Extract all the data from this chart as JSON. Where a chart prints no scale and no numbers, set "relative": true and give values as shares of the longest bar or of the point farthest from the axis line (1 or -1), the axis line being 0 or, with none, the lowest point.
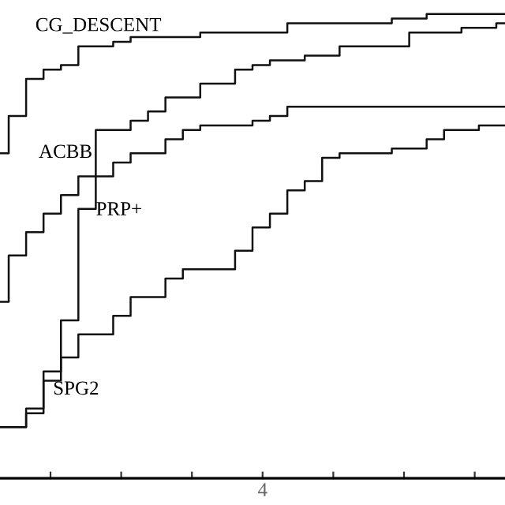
{
  "chart_data": {
    "type": "step",
    "relative": true,
    "categories": [
      null,
      null,
      null,
      null,
      null,
      null,
      null,
      null,
      null,
      null,
      null,
      null,
      null,
      null,
      null,
      null,
      null,
      null,
      null,
      null,
      null,
      null,
      null,
      null,
      null,
      null,
      null,
      null,
      null,
      null
    ],
    "grid": false,
    "legend": false,
    "line_style": "solid",
    "marker": "none",
    "annotations": [
      "4"
    ],
    "series": [
      {
        "name": "CG_DESCENT",
        "color": "#111111",
        "values": [
          0.7,
          0.78,
          0.86,
          0.88,
          0.89,
          0.93,
          0.93,
          0.94,
          0.95,
          0.95,
          0.95,
          0.95,
          0.96,
          0.96,
          0.96,
          0.96,
          0.96,
          0.98,
          0.98,
          0.98,
          0.98,
          0.98,
          0.98,
          0.99,
          0.99,
          1.0,
          1.0,
          1.0,
          1.0,
          1.0
        ]
      },
      {
        "name": "ACBB",
        "color": "#111111",
        "values": [
          0.38,
          0.48,
          0.53,
          0.57,
          0.61,
          0.65,
          0.75,
          0.75,
          0.77,
          0.79,
          0.82,
          0.82,
          0.85,
          0.85,
          0.88,
          0.89,
          0.9,
          0.9,
          0.91,
          0.91,
          0.93,
          0.93,
          0.93,
          0.93,
          0.96,
          0.96,
          0.96,
          0.97,
          0.97,
          0.98
        ]
      },
      {
        "name": "PRP+",
        "color": "#111111",
        "values": [
          0.11,
          0.11,
          0.14,
          0.23,
          0.34,
          0.58,
          0.65,
          0.68,
          0.7,
          0.7,
          0.73,
          0.75,
          0.76,
          0.76,
          0.76,
          0.77,
          0.78,
          0.8,
          0.8,
          0.8,
          0.8,
          0.8,
          0.8,
          0.8,
          0.8,
          0.8,
          0.8,
          0.8,
          0.8,
          0.8
        ]
      },
      {
        "name": "SPG2",
        "color": "#111111",
        "values": [
          0.11,
          0.11,
          0.15,
          0.21,
          0.26,
          0.31,
          0.31,
          0.35,
          0.39,
          0.39,
          0.43,
          0.45,
          0.45,
          0.45,
          0.49,
          0.54,
          0.57,
          0.62,
          0.64,
          0.69,
          0.7,
          0.7,
          0.7,
          0.71,
          0.71,
          0.73,
          0.75,
          0.75,
          0.76,
          0.76
        ]
      }
    ]
  }
}
